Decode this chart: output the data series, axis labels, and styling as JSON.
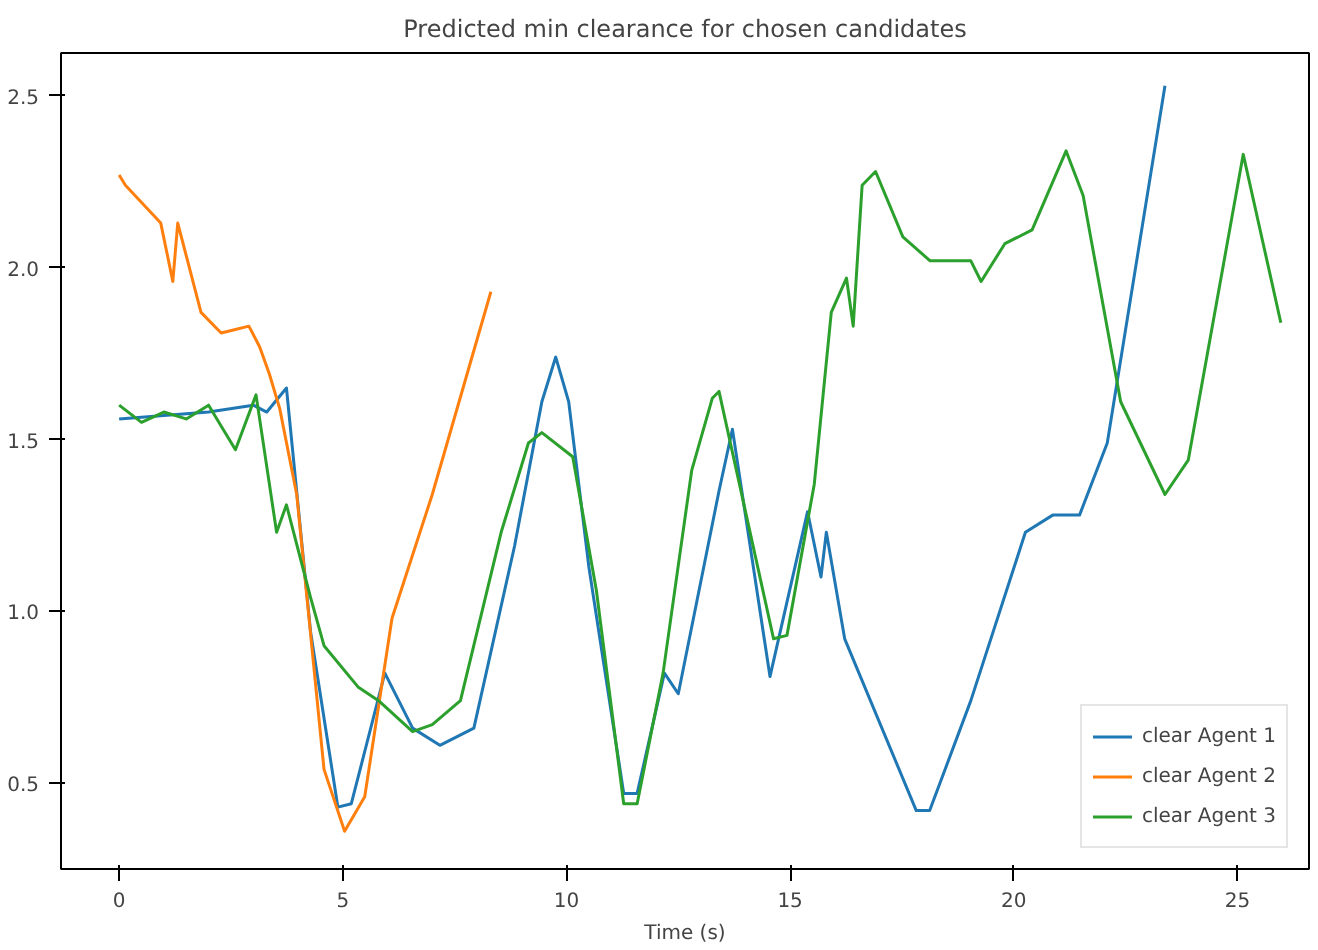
{
  "chart_data": {
    "type": "line",
    "title": "Predicted min clearance for chosen candidates",
    "xlabel": "Time (s)",
    "xlim": [
      -1.3,
      26.6
    ],
    "ylim": [
      0.25,
      2.625
    ],
    "xticks": [
      0,
      5,
      10,
      15,
      20,
      25
    ],
    "yticks": [
      0.5,
      {
        "value": 1,
        "label": "1.0"
      },
      1.5,
      {
        "value": 2,
        "label": "2.0"
      },
      2.5
    ],
    "grid": false,
    "legend": "bottom right",
    "series": [
      {
        "name": "clear Agent 1",
        "color": "#1f77b4",
        "x": [
          0,
          1,
          2,
          3,
          3.3,
          3.74,
          4.28,
          4.89,
          5.19,
          5.94,
          6.56,
          7.17,
          7.93,
          8.84,
          9.45,
          9.76,
          10.05,
          10.5,
          11.28,
          11.58,
          12.19,
          12.5,
          13.41,
          13.71,
          14.55,
          15.39,
          15.69,
          15.81,
          16.22,
          17.82,
          18.12,
          19.04,
          20.26,
          20.87,
          21.47,
          22.09,
          23.38
        ],
        "values": [
          1.56,
          1.57,
          1.58,
          1.6,
          1.58,
          1.65,
          0.94,
          0.43,
          0.44,
          0.82,
          0.66,
          0.61,
          0.66,
          1.19,
          1.61,
          1.74,
          1.61,
          1.13,
          0.47,
          0.47,
          0.82,
          0.76,
          1.35,
          1.53,
          0.81,
          1.29,
          1.1,
          1.23,
          0.92,
          0.42,
          0.42,
          0.74,
          1.23,
          1.28,
          1.28,
          1.49,
          2.53
        ]
      },
      {
        "name": "clear Agent 2",
        "color": "#ff7f0e",
        "x": [
          0,
          0.14,
          0.93,
          1.2,
          1.31,
          1.83,
          2.28,
          2.6,
          2.9,
          3.14,
          3.36,
          3.59,
          3.97,
          4.58,
          5.04,
          5.49,
          6.1,
          7.0,
          8.31
        ],
        "values": [
          2.27,
          2.24,
          2.13,
          1.96,
          2.13,
          1.87,
          1.81,
          1.82,
          1.83,
          1.77,
          1.69,
          1.59,
          1.34,
          0.54,
          0.36,
          0.46,
          0.98,
          1.34,
          1.93
        ]
      },
      {
        "name": "clear Agent 3",
        "color": "#2ca02c",
        "x": [
          0,
          0.5,
          1,
          1.5,
          2,
          2.6,
          3.06,
          3.52,
          3.74,
          4.28,
          4.58,
          5.34,
          5.8,
          6.56,
          7.0,
          7.63,
          8.54,
          9.15,
          9.45,
          10.14,
          10.67,
          11.28,
          11.58,
          12.16,
          12.8,
          13.26,
          13.41,
          14.63,
          14.93,
          15.54,
          15.92,
          16.26,
          16.41,
          16.61,
          16.91,
          17.52,
          18.13,
          19.04,
          19.27,
          19.8,
          20.41,
          21.17,
          21.55,
          22.39,
          23.38,
          23.9,
          25.13,
          25.97
        ],
        "values": [
          1.6,
          1.55,
          1.58,
          1.56,
          1.6,
          1.47,
          1.63,
          1.23,
          1.31,
          1.04,
          0.9,
          0.78,
          0.74,
          0.65,
          0.67,
          0.74,
          1.23,
          1.49,
          1.52,
          1.45,
          1.06,
          0.44,
          0.44,
          0.82,
          1.41,
          1.62,
          1.64,
          0.92,
          0.93,
          1.37,
          1.87,
          1.97,
          1.83,
          2.24,
          2.28,
          2.09,
          2.02,
          2.02,
          1.96,
          2.07,
          2.11,
          2.34,
          2.21,
          1.61,
          1.34,
          1.44,
          2.33,
          1.84
        ]
      }
    ]
  }
}
